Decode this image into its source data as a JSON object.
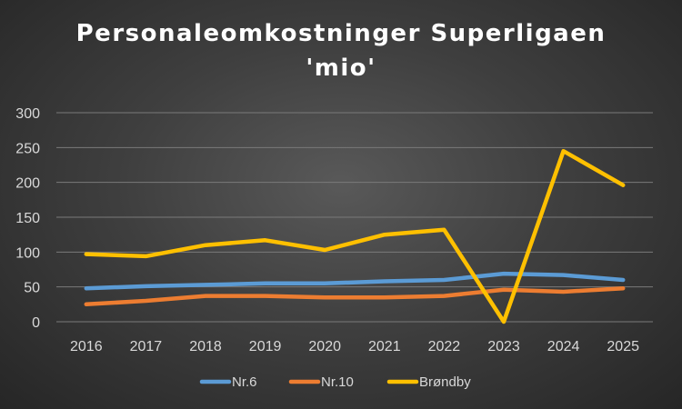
{
  "chart_data": {
    "type": "line",
    "title_line1": "Personaleomkostninger Superligaen",
    "title_line2": "'mio'",
    "x": [
      "2016",
      "2017",
      "2018",
      "2019",
      "2020",
      "2021",
      "2022",
      "2023",
      "2024",
      "2025"
    ],
    "ylim": [
      0,
      300
    ],
    "yticks": [
      0,
      50,
      100,
      150,
      200,
      250,
      300
    ],
    "grid": true,
    "legend_position": "bottom",
    "series": [
      {
        "name": "Nr.6",
        "color": "#5B9BD5",
        "values": [
          48,
          51,
          53,
          55,
          55,
          58,
          60,
          69,
          67,
          60
        ]
      },
      {
        "name": "Nr.10",
        "color": "#ED7D31",
        "values": [
          25,
          30,
          37,
          37,
          35,
          35,
          37,
          46,
          43,
          48
        ]
      },
      {
        "name": "Brøndby",
        "color": "#FFC000",
        "values": [
          97,
          94,
          110,
          117,
          103,
          125,
          132,
          0,
          245,
          196
        ]
      }
    ]
  }
}
